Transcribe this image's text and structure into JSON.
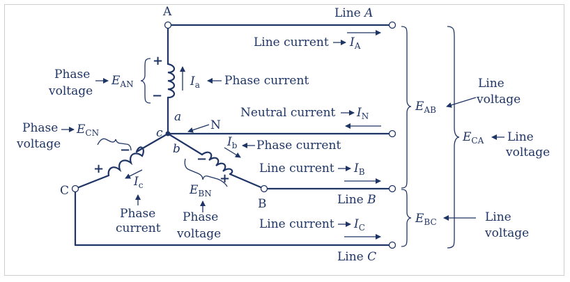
{
  "diagram": {
    "nodes": {
      "A": "A",
      "B": "B",
      "C": "C",
      "N": "N",
      "a": "a",
      "b": "b",
      "c": "c"
    },
    "lines": {
      "line_a": {
        "prefix": "Line ",
        "name": "A"
      },
      "line_b": {
        "prefix": "Line ",
        "name": "B"
      },
      "line_c": {
        "prefix": "Line ",
        "name": "C"
      }
    },
    "line_currents": {
      "label": "Line current",
      "ia": {
        "sym": "I",
        "sub": "A"
      },
      "ib": {
        "sym": "I",
        "sub": "B"
      },
      "ic": {
        "sym": "I",
        "sub": "C"
      }
    },
    "neutral": {
      "label": "Neutral current",
      "sym": "I",
      "sub": "N"
    },
    "phase_currents": {
      "label": "Phase current",
      "word1": "Phase",
      "word2": "current",
      "ia": {
        "sym": "I",
        "sub": "a"
      },
      "ib": {
        "sym": "I",
        "sub": "b"
      },
      "ic": {
        "sym": "I",
        "sub": "c"
      }
    },
    "phase_voltages": {
      "word1": "Phase",
      "word2": "voltage",
      "ean": {
        "sym": "E",
        "sub": "AN"
      },
      "ecn": {
        "sym": "E",
        "sub": "CN"
      },
      "ebn": {
        "sym": "E",
        "sub": "BN"
      }
    },
    "line_voltages": {
      "word1": "Line",
      "word2": "voltage",
      "eab": {
        "sym": "E",
        "sub": "AB"
      },
      "eca": {
        "sym": "E",
        "sub": "CA"
      },
      "ebc": {
        "sym": "E",
        "sub": "BC"
      }
    },
    "polarity": {
      "plus": "+",
      "minus": "−"
    },
    "colors": {
      "ink": "#1f3566",
      "border": "#cfcfcf"
    }
  }
}
